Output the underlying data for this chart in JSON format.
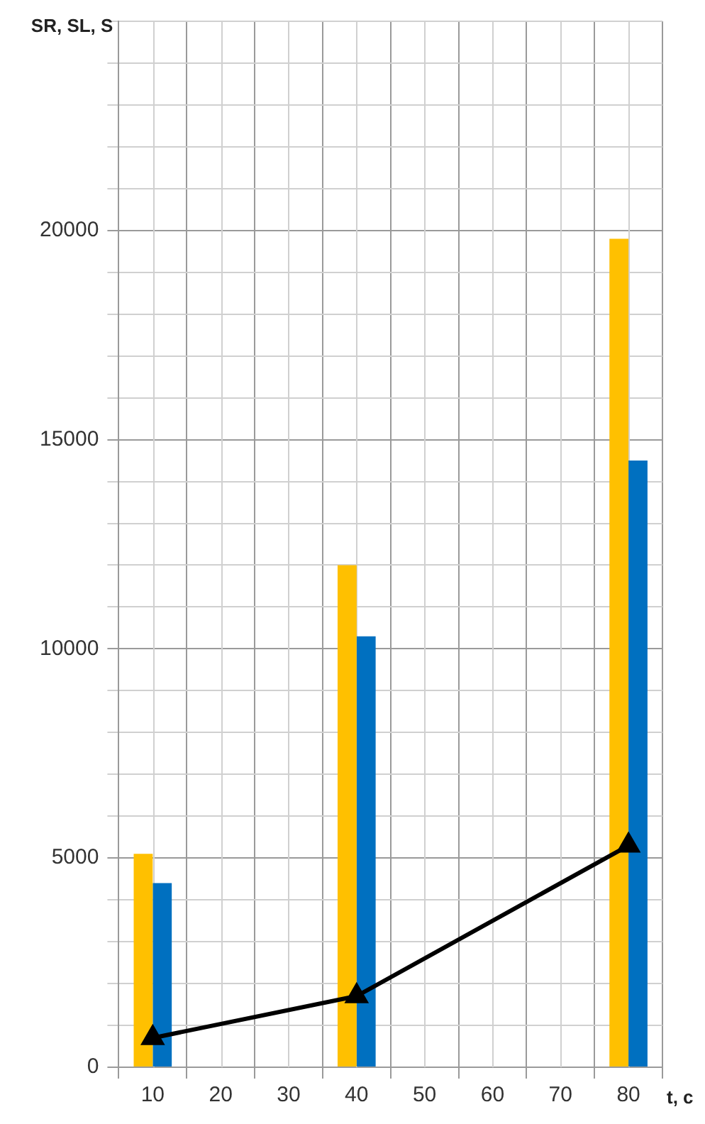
{
  "chart_data": {
    "type": "bar",
    "ylabel": "SR, SL, S",
    "xlabel": "t, c",
    "categories": [
      "10",
      "20",
      "30",
      "40",
      "50",
      "60",
      "70",
      "80"
    ],
    "series": [
      {
        "color": "#ffc000",
        "values": [
          5100,
          null,
          null,
          12000,
          null,
          null,
          null,
          19800
        ]
      },
      {
        "color": "#0070c0",
        "values": [
          4400,
          null,
          null,
          10300,
          null,
          null,
          null,
          14500
        ]
      },
      {
        "type": "line",
        "color": "#000000",
        "marker": "triangle",
        "values": [
          700,
          null,
          null,
          1700,
          null,
          null,
          null,
          5300
        ]
      }
    ],
    "ylim": [
      0,
      25000
    ],
    "yticks": [
      0,
      {
        "value": 1000,
        "label": null
      },
      {
        "value": 2000,
        "label": null
      },
      {
        "value": 3000,
        "label": null
      },
      {
        "value": 4000,
        "label": null
      },
      5000,
      {
        "value": 6000,
        "label": null
      },
      {
        "value": 7000,
        "label": null
      },
      {
        "value": 8000,
        "label": null
      },
      {
        "value": 9000,
        "label": null
      },
      10000,
      {
        "value": 11000,
        "label": null
      },
      {
        "value": 12000,
        "label": null
      },
      {
        "value": 13000,
        "label": null
      },
      {
        "value": 14000,
        "label": null
      },
      15000,
      {
        "value": 16000,
        "label": null
      },
      {
        "value": 17000,
        "label": null
      },
      {
        "value": 18000,
        "label": null
      },
      {
        "value": 19000,
        "label": null
      },
      20000,
      {
        "value": 21000,
        "label": null
      },
      {
        "value": 22000,
        "label": null
      },
      {
        "value": 23000,
        "label": null
      },
      {
        "value": 24000,
        "label": null
      },
      {
        "value": 25000,
        "label": null
      }
    ],
    "grid": true,
    "legend": false
  }
}
